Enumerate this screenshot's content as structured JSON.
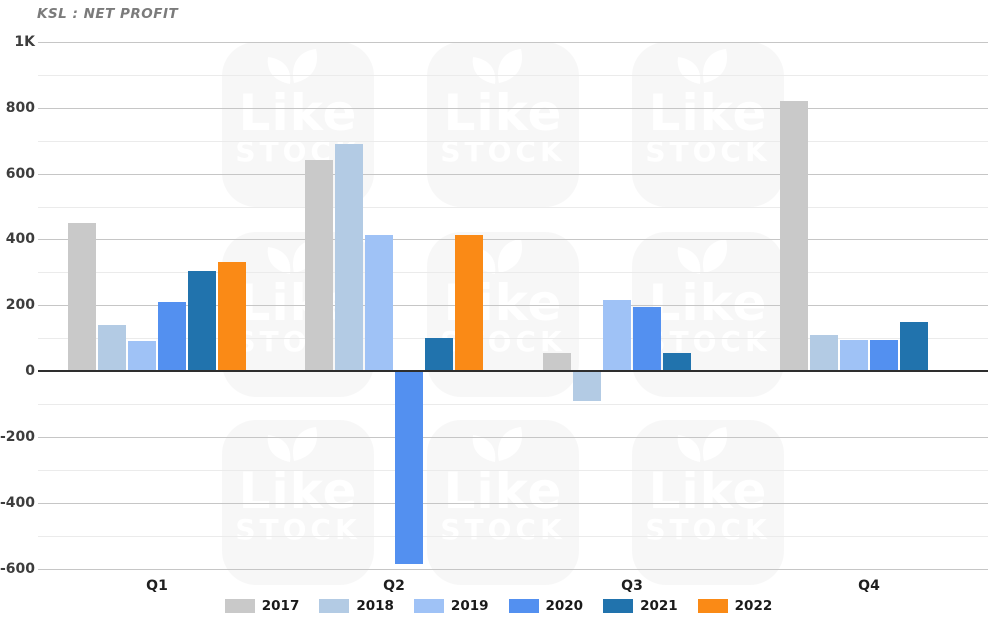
{
  "watermark": {
    "brand_line1": "Like",
    "brand_line2": "STOCK"
  },
  "chart_data": {
    "type": "bar",
    "title": "KSL : NET PROFIT",
    "categories": [
      "Q1",
      "Q2",
      "Q3",
      "Q4"
    ],
    "series": [
      {
        "name": "2017",
        "color": "#c9c9c9",
        "values": [
          450,
          640,
          55,
          820
        ]
      },
      {
        "name": "2018",
        "color": "#b3cbe4",
        "values": [
          140,
          690,
          -90,
          110
        ]
      },
      {
        "name": "2019",
        "color": "#9fc2f6",
        "values": [
          90,
          415,
          215,
          95
        ]
      },
      {
        "name": "2020",
        "color": "#5390f0",
        "values": [
          210,
          -585,
          195,
          95
        ]
      },
      {
        "name": "2021",
        "color": "#2173ad",
        "values": [
          305,
          100,
          55,
          150
        ]
      },
      {
        "name": "2022",
        "color": "#fa8a16",
        "values": [
          330,
          415,
          null,
          null
        ]
      }
    ],
    "y_axis": {
      "tick_labels": [
        "1K",
        "800",
        "600",
        "400",
        "200",
        "0",
        "-200",
        "-400",
        "-600"
      ],
      "tick_values": [
        1000,
        800,
        600,
        400,
        200,
        0,
        -200,
        -400,
        -600
      ],
      "minor_values": [
        900,
        700,
        500,
        300,
        100,
        -100,
        -300,
        -500
      ],
      "ylim": [
        -600,
        1000
      ]
    },
    "xlabel": "",
    "ylabel": "",
    "grid": true,
    "legend_position": "bottom"
  }
}
